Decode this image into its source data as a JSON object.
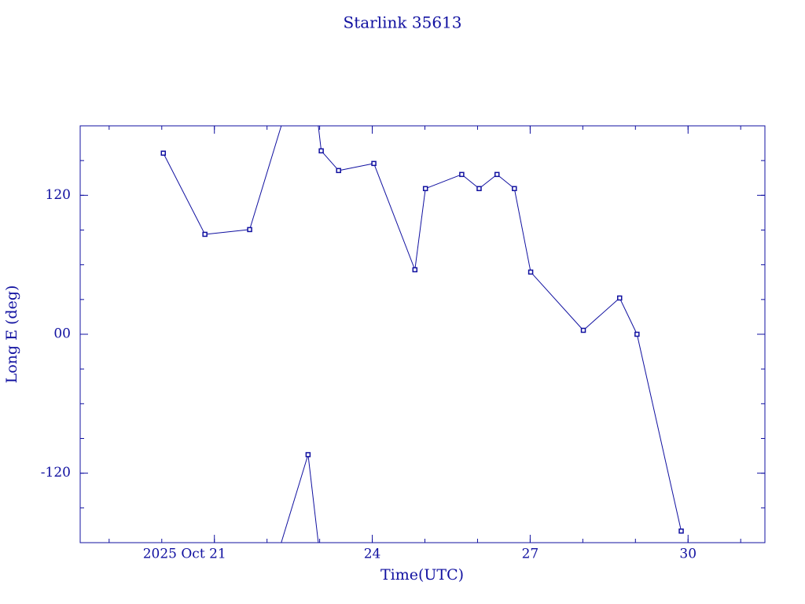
{
  "chart_data": {
    "type": "line",
    "title": "Starlink 35613",
    "x_label": "Time(UTC)",
    "y_label": "Long E (deg)",
    "color": "#1010a0",
    "x": [
      20.03,
      20.82,
      21.67,
      22.78,
      23.03,
      23.36,
      24.03,
      24.81,
      25.01,
      25.7,
      26.03,
      26.37,
      26.7,
      27.01,
      28.01,
      28.7,
      29.03,
      29.87
    ],
    "values": [
      156.4,
      86.3,
      90.4,
      -104.0,
      158.4,
      141.4,
      147.5,
      55.7,
      125.8,
      138.0,
      125.8,
      138.0,
      125.8,
      53.7,
      3.4,
      31.3,
      0,
      -170.0
    ],
    "xlim": [
      18.45,
      31.46
    ],
    "xticks": [
      {
        "value": 21,
        "label": "2025 Oct 21"
      },
      24,
      27,
      30
    ],
    "ylim": [
      -180,
      180
    ],
    "yticks": [
      -120,
      {
        "value": 0,
        "label": "00"
      },
      120
    ],
    "wrap": true
  }
}
